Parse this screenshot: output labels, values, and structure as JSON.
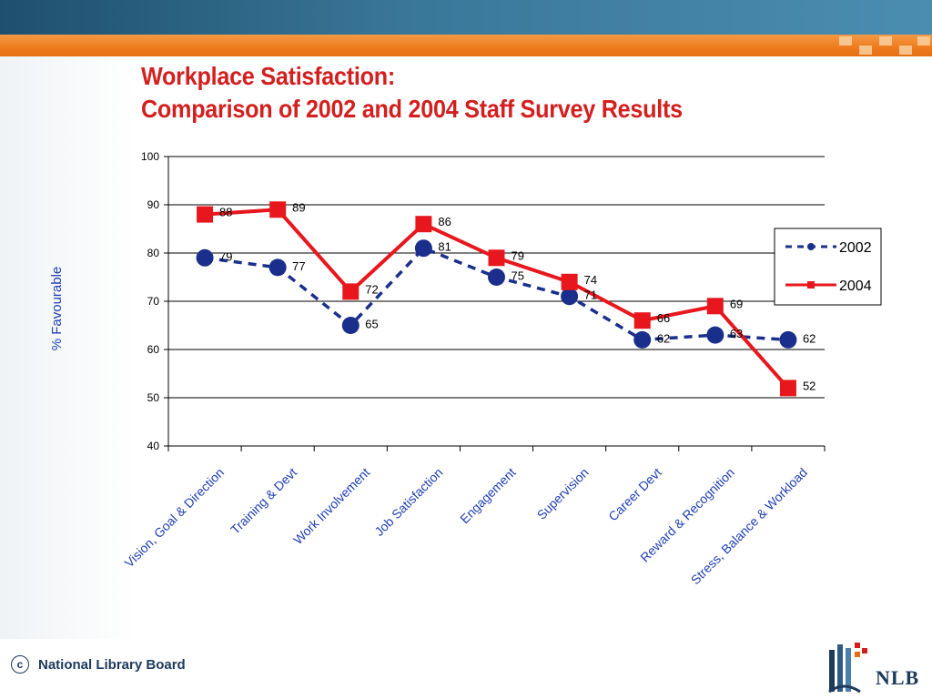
{
  "header": {
    "title_line1": "Workplace Satisfaction:",
    "title_line2": "Comparison of 2002 and 2004 Staff Survey Results"
  },
  "footer": {
    "copyright_symbol": "c",
    "organization": "National Library Board",
    "logo_text": "NLB"
  },
  "colors": {
    "title": "#d41f1f",
    "series_2002": "#1a2f8c",
    "series_2004": "#e8171d",
    "axis_label": "#1f3fb5",
    "top_band": "#3a789a",
    "orange_band": "#ee7a1c"
  },
  "chart_data": {
    "type": "line",
    "ylabel": "% Favourable",
    "ylim": [
      40,
      100
    ],
    "yticks": [
      40,
      50,
      60,
      70,
      80,
      90,
      100
    ],
    "grid": true,
    "legend_position": "right",
    "categories": [
      "Vision, Goal & Direction",
      "Training & Devt",
      "Work Involvement",
      "Job Satisfaction",
      "Engagement",
      "Supervision",
      "Career Devt",
      "Reward & Recognition",
      "Stress, Balance & Workload"
    ],
    "series": [
      {
        "name": "2002",
        "values": [
          79,
          77,
          65,
          81,
          75,
          71,
          62,
          63,
          62
        ]
      },
      {
        "name": "2004",
        "values": [
          88,
          89,
          72,
          86,
          79,
          74,
          66,
          69,
          52
        ]
      }
    ]
  }
}
